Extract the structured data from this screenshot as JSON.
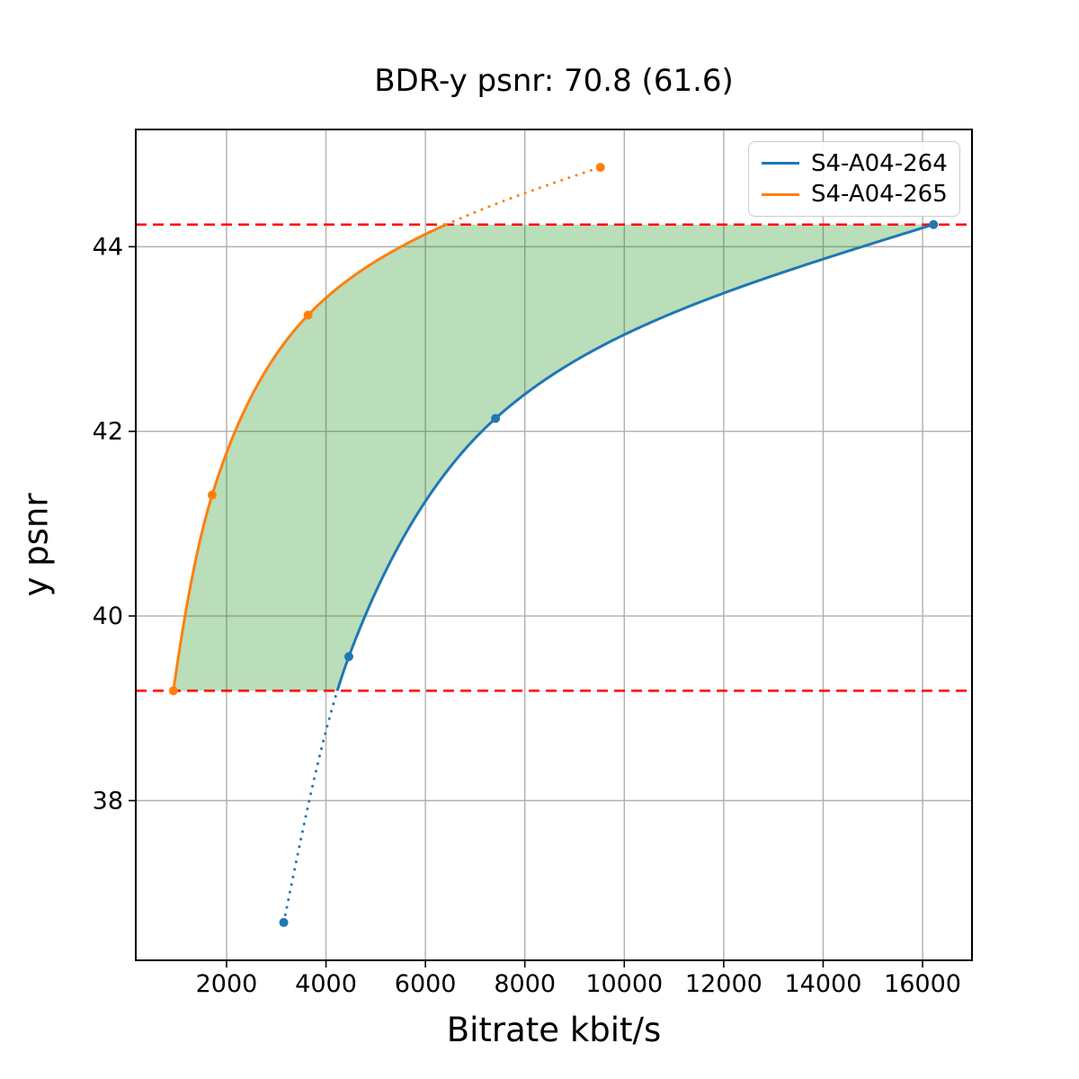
{
  "page": {
    "background": "#ffffff"
  },
  "chart_data": {
    "type": "line",
    "title": "BDR-y psnr: 70.8 (61.6)",
    "xlabel": "Bitrate kbit/s",
    "ylabel": "y psnr",
    "xlim": [
      174,
      16994
    ],
    "ylim": [
      36.27,
      45.27
    ],
    "x_ticks": [
      2000,
      4000,
      6000,
      8000,
      10000,
      12000,
      14000,
      16000
    ],
    "y_ticks": [
      38,
      40,
      42,
      44
    ],
    "grid": true,
    "grid_color": "#b0b0b0",
    "interpolation": "pchip_log_x",
    "series": [
      {
        "name": "S4-A04-264",
        "color": "#1f77b4",
        "x": [
          3150,
          4460,
          7410,
          16220
        ],
        "y": [
          36.68,
          39.56,
          42.14,
          44.24
        ]
      },
      {
        "name": "S4-A04-265",
        "color": "#ff7f0e",
        "x": [
          930,
          1710,
          3640,
          9520
        ],
        "y": [
          39.19,
          41.31,
          43.26,
          44.86
        ]
      }
    ],
    "overlap_bounds": {
      "low": 39.19,
      "high": 44.24,
      "line_color": "#ff0000",
      "line_style": "dashed"
    },
    "fill_between": {
      "color": "#008000",
      "alpha": 0.27
    },
    "outside_bounds_style": "dotted",
    "legend_position": "upper right"
  }
}
